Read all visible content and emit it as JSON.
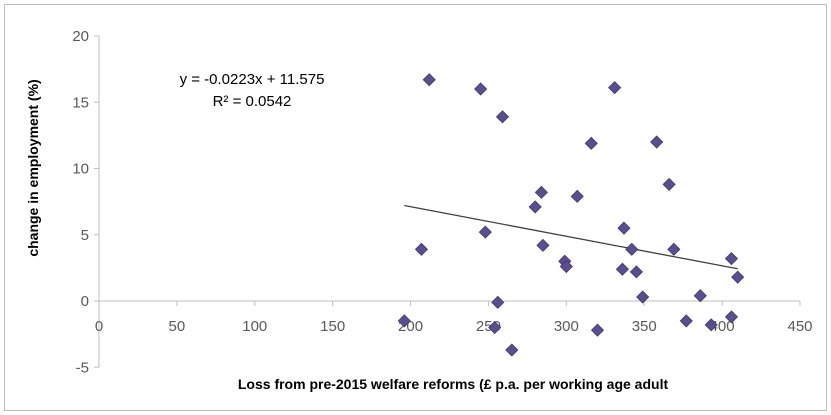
{
  "chart_data": {
    "type": "scatter",
    "title": "",
    "xlabel": "Loss from pre-2015 welfare reforms (£ p.a. per working age adult",
    "ylabel": "change in employment (%)",
    "xlim": [
      0,
      450
    ],
    "ylim": [
      -5,
      20
    ],
    "x_ticks": [
      0,
      50,
      100,
      150,
      200,
      250,
      300,
      350,
      400,
      450
    ],
    "y_ticks": [
      -5,
      0,
      5,
      10,
      15,
      20
    ],
    "grid": false,
    "legend": "none",
    "marker": "diamond",
    "colors": {
      "marker": "#5b4e8f",
      "marker_edge": "#3f3570",
      "trendline": "#404040",
      "axis": "#bfbfbf"
    },
    "series": [
      {
        "points": [
          [
            196,
            -1.5
          ],
          [
            207,
            3.9
          ],
          [
            212,
            16.7
          ],
          [
            245,
            16.0
          ],
          [
            248,
            5.2
          ],
          [
            254,
            -2.0
          ],
          [
            256,
            -0.1
          ],
          [
            259,
            13.9
          ],
          [
            265,
            -3.7
          ],
          [
            280,
            7.1
          ],
          [
            284,
            8.2
          ],
          [
            285,
            4.2
          ],
          [
            299,
            3.0
          ],
          [
            300,
            2.6
          ],
          [
            307,
            7.9
          ],
          [
            316,
            11.9
          ],
          [
            320,
            -2.2
          ],
          [
            331,
            16.1
          ],
          [
            336,
            2.4
          ],
          [
            337,
            5.5
          ],
          [
            342,
            3.9
          ],
          [
            345,
            2.2
          ],
          [
            349,
            0.3
          ],
          [
            358,
            12.0
          ],
          [
            366,
            8.8
          ],
          [
            369,
            3.9
          ],
          [
            377,
            -1.5
          ],
          [
            386,
            0.4
          ],
          [
            393,
            -1.8
          ],
          [
            406,
            3.2
          ],
          [
            406,
            -1.2
          ],
          [
            410,
            1.8
          ]
        ]
      }
    ],
    "trendline": {
      "type": "linear",
      "slope": -0.0223,
      "intercept": 11.575,
      "x_range": [
        196,
        410
      ]
    },
    "annotations": {
      "equation": "y = -0.0223x + 11.575",
      "r_squared": "R² = 0.0542"
    }
  }
}
